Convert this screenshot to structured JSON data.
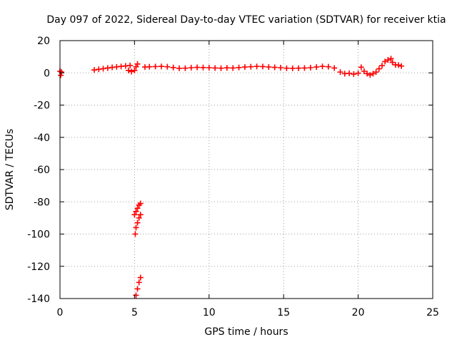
{
  "chart_data": {
    "type": "scatter",
    "title": "Day 097 of 2022, Sidereal Day-to-day VTEC variation (SDTVAR) for receiver ktia",
    "xlabel": "GPS time / hours",
    "ylabel": "SDTVAR / TECUs",
    "xlim": [
      0,
      25
    ],
    "ylim": [
      -140,
      20
    ],
    "x_ticks": [
      0,
      5,
      10,
      15,
      20,
      25
    ],
    "y_ticks": [
      20,
      0,
      -20,
      -40,
      -60,
      -80,
      -100,
      -120,
      -140
    ],
    "grid": true,
    "legend": "none",
    "marker": "plus",
    "color": "#ff0000",
    "series": [
      {
        "values": [
          [
            0.0,
            1.0
          ],
          [
            0.05,
            -1.5
          ],
          [
            0.1,
            0.5
          ],
          [
            2.3,
            1.8
          ],
          [
            2.6,
            2.2
          ],
          [
            2.9,
            2.6
          ],
          [
            3.2,
            3.0
          ],
          [
            3.5,
            3.4
          ],
          [
            3.8,
            3.7
          ],
          [
            4.1,
            4.0
          ],
          [
            4.4,
            4.3
          ],
          [
            4.7,
            4.6
          ],
          [
            4.6,
            1.5
          ],
          [
            4.8,
            0.8
          ],
          [
            5.0,
            1.5
          ],
          [
            5.1,
            3.8
          ],
          [
            5.2,
            5.5
          ],
          [
            5.0,
            -88
          ],
          [
            5.1,
            -86
          ],
          [
            5.2,
            -84
          ],
          [
            5.3,
            -82
          ],
          [
            5.4,
            -81
          ],
          [
            5.05,
            -100
          ],
          [
            5.1,
            -96
          ],
          [
            5.2,
            -93
          ],
          [
            5.3,
            -90
          ],
          [
            5.4,
            -88
          ],
          [
            5.1,
            -138
          ],
          [
            5.2,
            -134
          ],
          [
            5.3,
            -130
          ],
          [
            5.4,
            -127
          ],
          [
            5.7,
            3.6
          ],
          [
            6.0,
            3.8
          ],
          [
            6.4,
            3.9
          ],
          [
            6.8,
            4.0
          ],
          [
            7.2,
            3.8
          ],
          [
            7.6,
            3.3
          ],
          [
            8.0,
            2.8
          ],
          [
            8.4,
            2.9
          ],
          [
            8.8,
            3.2
          ],
          [
            9.2,
            3.4
          ],
          [
            9.6,
            3.3
          ],
          [
            10.0,
            3.2
          ],
          [
            10.4,
            3.0
          ],
          [
            10.8,
            2.9
          ],
          [
            11.2,
            3.1
          ],
          [
            11.6,
            3.0
          ],
          [
            12.0,
            3.3
          ],
          [
            12.4,
            3.6
          ],
          [
            12.8,
            3.8
          ],
          [
            13.2,
            4.0
          ],
          [
            13.6,
            3.9
          ],
          [
            14.0,
            3.6
          ],
          [
            14.4,
            3.4
          ],
          [
            14.8,
            3.2
          ],
          [
            15.2,
            2.9
          ],
          [
            15.6,
            2.8
          ],
          [
            16.0,
            2.9
          ],
          [
            16.4,
            3.0
          ],
          [
            16.8,
            3.2
          ],
          [
            17.2,
            3.6
          ],
          [
            17.6,
            4.0
          ],
          [
            18.0,
            3.8
          ],
          [
            18.4,
            3.0
          ],
          [
            18.8,
            0.5
          ],
          [
            19.1,
            -0.5
          ],
          [
            19.4,
            -0.3
          ],
          [
            19.7,
            -0.8
          ],
          [
            20.0,
            -0.2
          ],
          [
            20.2,
            3.5
          ],
          [
            20.4,
            1.0
          ],
          [
            20.6,
            -0.5
          ],
          [
            20.8,
            -1.3
          ],
          [
            21.0,
            -0.5
          ],
          [
            21.2,
            0.5
          ],
          [
            21.4,
            2.5
          ],
          [
            21.6,
            4.5
          ],
          [
            21.8,
            7.0
          ],
          [
            22.0,
            8.0
          ],
          [
            22.2,
            8.8
          ],
          [
            22.3,
            6.5
          ],
          [
            22.5,
            5.0
          ],
          [
            22.7,
            4.8
          ],
          [
            22.9,
            4.2
          ]
        ]
      }
    ]
  }
}
